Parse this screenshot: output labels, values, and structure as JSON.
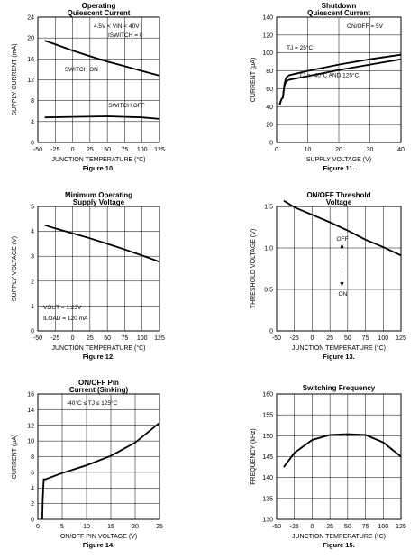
{
  "chart_data": [
    {
      "type": "line",
      "title": "Operating Quiescent Current",
      "figure": "Figure 10.",
      "xlabel": "JUNCTION TEMPERATURE (°C)",
      "ylabel": "SUPPLY CURRENT (mA)",
      "xlim": [
        -50,
        125
      ],
      "ylim": [
        0,
        24
      ],
      "x_ticks": [
        -50,
        -25,
        0,
        25,
        50,
        75,
        100,
        125
      ],
      "y_ticks": [
        0,
        4,
        8,
        12,
        16,
        20,
        24
      ],
      "grid": true,
      "annotation_lines": [
        "4.5V < VIN < 40V",
        "ISWITCH = 0"
      ],
      "series": [
        {
          "label": "SWITCH ON",
          "x": [
            -40,
            -25,
            0,
            25,
            50,
            75,
            100,
            125
          ],
          "y": [
            19.5,
            18.8,
            17.6,
            16.5,
            15.5,
            14.6,
            13.7,
            12.8
          ]
        },
        {
          "label": "SWITCH OFF",
          "x": [
            -40,
            0,
            50,
            100,
            125
          ],
          "y": [
            4.8,
            4.9,
            5.0,
            4.8,
            4.5
          ]
        }
      ]
    },
    {
      "type": "line",
      "title": "Shutdown Quiescent Current",
      "figure": "Figure 11.",
      "xlabel": "SUPPLY VOLTAGE (V)",
      "ylabel": "CURRENT (μA)",
      "xlim": [
        0,
        40
      ],
      "ylim": [
        0,
        140
      ],
      "x_ticks": [
        0,
        10,
        20,
        30,
        40
      ],
      "y_ticks": [
        0,
        20,
        40,
        60,
        80,
        100,
        120,
        140
      ],
      "grid": true,
      "annotation_lines": [
        "ON/OFF = 5V"
      ],
      "series": [
        {
          "label": "TJ = 25°C",
          "x": [
            1,
            1.5,
            2,
            2.5,
            3,
            4,
            10,
            20,
            30,
            40
          ],
          "y": [
            42,
            48,
            50,
            65,
            72,
            75,
            80,
            87,
            93,
            98
          ]
        },
        {
          "label": "TJ = -40°C AND 125°C",
          "x": [
            1,
            1.5,
            2,
            2.5,
            3,
            4,
            10,
            20,
            30,
            40
          ],
          "y": [
            42,
            48,
            50,
            63,
            68,
            70,
            74,
            81,
            87,
            93
          ]
        }
      ]
    },
    {
      "type": "line",
      "title": "Minimum Operating Supply Voltage",
      "figure": "Figure 12.",
      "xlabel": "JUNCTION TEMPERATURE (°C)",
      "ylabel": "SUPPLY VOLTAGE (V)",
      "xlim": [
        -50,
        125
      ],
      "ylim": [
        0,
        5
      ],
      "x_ticks": [
        -50,
        -25,
        0,
        25,
        50,
        75,
        100,
        125
      ],
      "y_ticks": [
        0,
        1,
        2,
        3,
        4,
        5
      ],
      "grid": true,
      "annotation_lines": [
        "VOUT = 1.23V",
        "ILOAD = 120 mA"
      ],
      "series": [
        {
          "label": "",
          "x": [
            -40,
            -25,
            0,
            25,
            50,
            75,
            100,
            125
          ],
          "y": [
            4.25,
            4.12,
            3.92,
            3.72,
            3.5,
            3.27,
            3.03,
            2.78
          ]
        }
      ]
    },
    {
      "type": "line",
      "title": "ON/OFF Threshold Voltage",
      "figure": "Figure 13.",
      "xlabel": "JUNCTION TEMPERATURE (°C)",
      "ylabel": "THRESHOLD VOLTAGE (V)",
      "xlim": [
        -50,
        125
      ],
      "ylim": [
        0,
        1.5
      ],
      "x_ticks": [
        -50,
        -25,
        0,
        25,
        50,
        75,
        100,
        125
      ],
      "y_ticks": [
        0,
        0.5,
        1.0,
        1.5
      ],
      "y_tick_labels": [
        "0",
        "0.5",
        "1.0",
        "1.5"
      ],
      "grid": true,
      "annotation_lines": [
        "OFF",
        "ON"
      ],
      "series": [
        {
          "label": "",
          "x": [
            -40,
            -25,
            0,
            25,
            50,
            75,
            100,
            125
          ],
          "y": [
            1.57,
            1.49,
            1.4,
            1.31,
            1.21,
            1.1,
            1.01,
            0.91
          ]
        }
      ]
    },
    {
      "type": "line",
      "title": "ON/OFF Pin Current (Sinking)",
      "figure": "Figure 14.",
      "xlabel": "ON/OFF PIN VOLTAGE (V)",
      "ylabel": "CURRENT (μA)",
      "xlim": [
        0,
        25
      ],
      "ylim": [
        0,
        16
      ],
      "x_ticks": [
        0,
        5,
        10,
        15,
        20,
        25
      ],
      "y_ticks": [
        0,
        2,
        4,
        6,
        8,
        10,
        12,
        14,
        16
      ],
      "grid": true,
      "annotation_lines": [
        "-40°C ≤ TJ ≤ 125°C"
      ],
      "series": [
        {
          "label": "",
          "x": [
            0.9,
            1.0,
            1.2,
            1.5,
            5,
            10,
            15,
            20,
            25
          ],
          "y": [
            0,
            2.5,
            5.1,
            5.1,
            5.9,
            6.9,
            8.1,
            9.8,
            12.3
          ]
        }
      ]
    },
    {
      "type": "line",
      "title": "Switching Frequency",
      "figure": "Figure 15.",
      "xlabel": "JUNCTION TEMPERATURE (°C)",
      "ylabel": "FREQUENCY (kHz)",
      "xlim": [
        -50,
        125
      ],
      "ylim": [
        130,
        160
      ],
      "x_ticks": [
        -50,
        -25,
        0,
        25,
        50,
        75,
        100,
        125
      ],
      "y_ticks": [
        130,
        135,
        140,
        145,
        150,
        155,
        160
      ],
      "grid": true,
      "annotation_lines": [],
      "series": [
        {
          "label": "",
          "x": [
            -40,
            -25,
            0,
            25,
            50,
            75,
            100,
            125
          ],
          "y": [
            142.5,
            145.9,
            149.0,
            150.2,
            150.4,
            150.2,
            148.4,
            145.0
          ]
        }
      ]
    }
  ]
}
